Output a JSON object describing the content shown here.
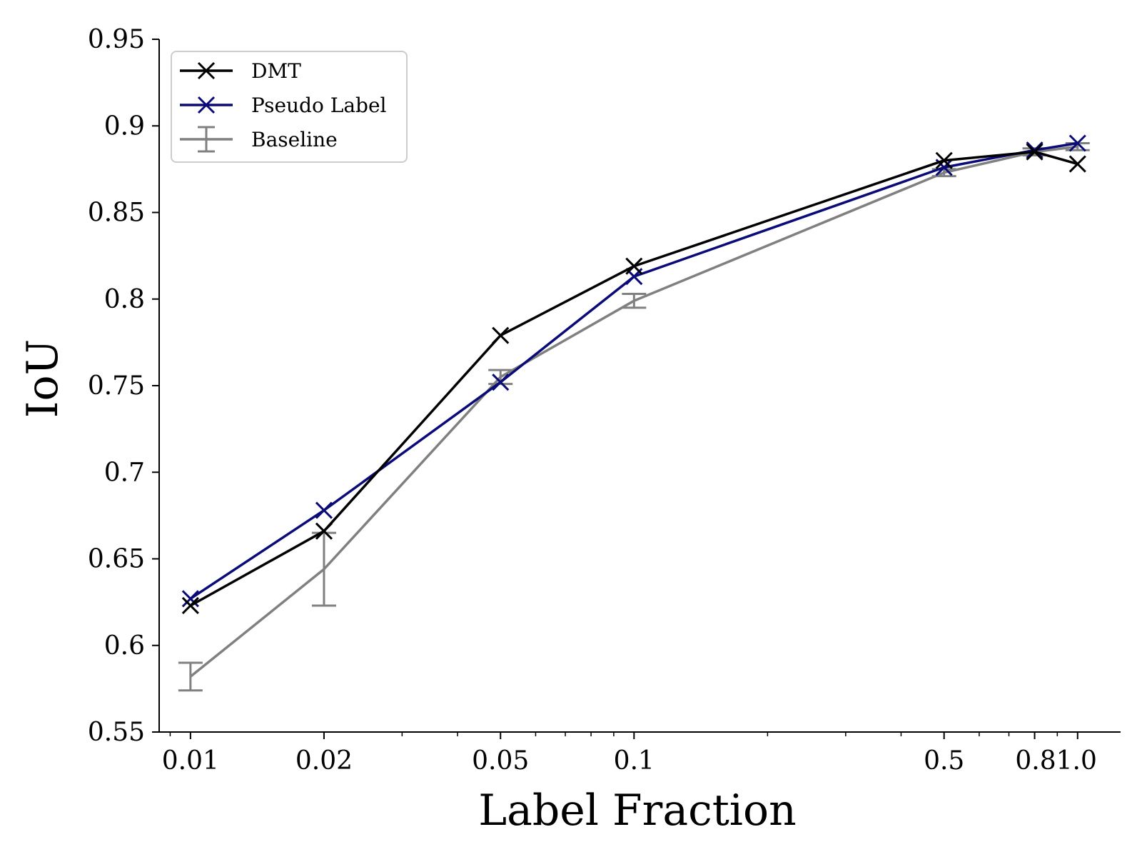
{
  "chart_data": {
    "type": "line",
    "title": "",
    "xlabel": "Label Fraction",
    "ylabel": "IoU",
    "x_scale": "log",
    "x": [
      0.01,
      0.02,
      0.05,
      0.1,
      0.5,
      0.8,
      1.0
    ],
    "x_tick_labels": [
      "0.01",
      "0.02",
      "0.05",
      "0.1",
      "0.5",
      "0.8",
      "1.0"
    ],
    "x_tick_label_display": [
      "0.01",
      "0.02",
      "0.05",
      "0.1",
      "0.5",
      "0.81.0"
    ],
    "y_ticks": [
      0.55,
      0.6,
      0.65,
      0.7,
      0.75,
      0.8,
      0.85,
      0.9,
      0.95
    ],
    "y_tick_labels": [
      "0.55",
      "0.6",
      "0.65",
      "0.7",
      "0.75",
      "0.8",
      "0.85",
      "0.9",
      "0.95"
    ],
    "ylim": [
      0.55,
      0.95
    ],
    "xlim": [
      0.0085,
      1.25
    ],
    "grid": false,
    "legend_position": "top-left",
    "series": [
      {
        "name": "DMT",
        "color": "#000000",
        "marker": "x",
        "values": [
          0.623,
          0.666,
          0.779,
          0.819,
          0.88,
          0.885,
          0.878
        ]
      },
      {
        "name": "Pseudo Label",
        "color": "#0a0a78",
        "marker": "x",
        "values": [
          0.627,
          0.678,
          0.752,
          0.813,
          0.876,
          0.886,
          0.89
        ]
      },
      {
        "name": "Baseline",
        "color": "#808080",
        "marker": "errorbar",
        "values": [
          0.582,
          0.644,
          0.755,
          0.799,
          0.873,
          0.885,
          0.888
        ],
        "errors": [
          0.008,
          0.021,
          0.004,
          0.004,
          0.002,
          0.002,
          0.002
        ]
      }
    ]
  }
}
